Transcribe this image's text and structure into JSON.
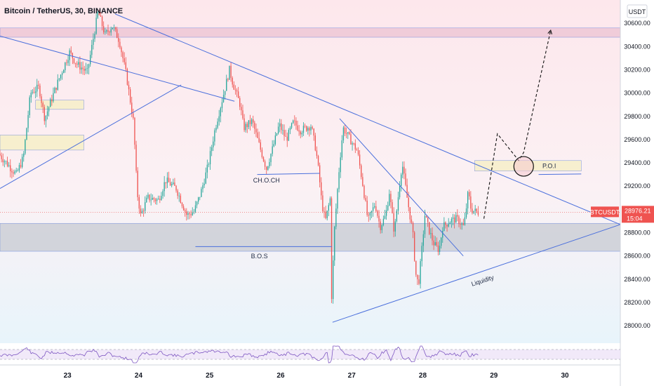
{
  "header": {
    "title": "Bitcoin / TetherUS, 30, BINANCE"
  },
  "colors": {
    "up": "#26a69a",
    "down": "#ef5350",
    "line": "#4a6fdc",
    "price_tag": "#ef5350",
    "zone_gray": "#b0b6bf",
    "zone_pink": "#e6b4c8",
    "zone_yellow": "#f6efc8"
  },
  "chart_data": {
    "type": "candlestick",
    "symbol": "Bitcoin / TetherUS",
    "interval": "30",
    "exchange": "BINANCE",
    "y_unit": "USDT",
    "ylim": [
      27850,
      30800
    ],
    "y_ticks": [
      28000,
      28200,
      28400,
      28600,
      28800,
      29000,
      29200,
      29400,
      29600,
      29800,
      30000,
      30200,
      30400,
      30600
    ],
    "y_tick_labels": [
      "28000.00",
      "28200.00",
      "28400.00",
      "28600.00",
      "28800.00",
      "29000.00",
      "29200.00",
      "29400.00",
      "29600.00",
      "29800.00",
      "30000.00",
      "30200.00",
      "30400.00",
      "30600.00"
    ],
    "x_ticks": [
      23,
      24,
      25,
      26,
      27,
      28,
      29,
      30
    ],
    "x_tick_labels": [
      "23",
      "24",
      "25",
      "26",
      "27",
      "28",
      "29",
      "30"
    ],
    "x_range": [
      22.05,
      30.78
    ],
    "last_price": {
      "label": "BTCUSDT",
      "value": "28976.21",
      "countdown": "15:04",
      "price": 28976
    },
    "anchors": [
      [
        22.05,
        29480
      ],
      [
        22.3,
        29300
      ],
      [
        22.4,
        29450
      ],
      [
        22.5,
        30000
      ],
      [
        22.62,
        30050
      ],
      [
        22.7,
        29780
      ],
      [
        22.78,
        29920
      ],
      [
        22.9,
        30120
      ],
      [
        23.05,
        30350
      ],
      [
        23.15,
        30250
      ],
      [
        23.3,
        30180
      ],
      [
        23.45,
        30700
      ],
      [
        23.55,
        30500
      ],
      [
        23.65,
        30580
      ],
      [
        23.75,
        30450
      ],
      [
        23.85,
        30150
      ],
      [
        23.95,
        29750
      ],
      [
        24.0,
        29150
      ],
      [
        24.05,
        28950
      ],
      [
        24.15,
        29100
      ],
      [
        24.3,
        29080
      ],
      [
        24.4,
        29250
      ],
      [
        24.55,
        29180
      ],
      [
        24.7,
        28950
      ],
      [
        24.8,
        28980
      ],
      [
        24.9,
        29150
      ],
      [
        25.0,
        29380
      ],
      [
        25.1,
        29700
      ],
      [
        25.2,
        29950
      ],
      [
        25.3,
        30200
      ],
      [
        25.35,
        30080
      ],
      [
        25.45,
        29900
      ],
      [
        25.5,
        29700
      ],
      [
        25.62,
        29760
      ],
      [
        25.72,
        29550
      ],
      [
        25.82,
        29350
      ],
      [
        25.92,
        29550
      ],
      [
        26.0,
        29730
      ],
      [
        26.1,
        29600
      ],
      [
        26.2,
        29750
      ],
      [
        26.3,
        29680
      ],
      [
        26.45,
        29720
      ],
      [
        26.52,
        29500
      ],
      [
        26.56,
        29300
      ],
      [
        26.6,
        29050
      ],
      [
        26.65,
        28900
      ],
      [
        26.72,
        29100
      ],
      [
        26.73,
        28150
      ],
      [
        26.78,
        28850
      ],
      [
        26.85,
        29400
      ],
      [
        26.9,
        29700
      ],
      [
        27.0,
        29600
      ],
      [
        27.1,
        29500
      ],
      [
        27.18,
        29200
      ],
      [
        27.25,
        28900
      ],
      [
        27.35,
        29050
      ],
      [
        27.42,
        28850
      ],
      [
        27.5,
        28950
      ],
      [
        27.55,
        29150
      ],
      [
        27.62,
        28800
      ],
      [
        27.7,
        29250
      ],
      [
        27.73,
        29400
      ],
      [
        27.8,
        29100
      ],
      [
        27.88,
        28800
      ],
      [
        27.92,
        28450
      ],
      [
        27.96,
        28350
      ],
      [
        28.0,
        28600
      ],
      [
        28.05,
        28950
      ],
      [
        28.12,
        28800
      ],
      [
        28.18,
        28700
      ],
      [
        28.25,
        28650
      ],
      [
        28.3,
        28850
      ],
      [
        28.4,
        28900
      ],
      [
        28.5,
        28920
      ],
      [
        28.6,
        28850
      ],
      [
        28.66,
        29150
      ],
      [
        28.7,
        29000
      ],
      [
        28.78,
        28976
      ]
    ],
    "zones": [
      {
        "name": "resistance-zone",
        "y0": 30480,
        "y1": 30560,
        "x0": 22.05,
        "x1": 30.78
      },
      {
        "name": "support-zone",
        "y0": 28640,
        "y1": 28880,
        "x0": 22.05,
        "x1": 30.78
      },
      {
        "name": "order-block-1",
        "y0": 29860,
        "y1": 29940,
        "x0": 22.55,
        "x1": 23.23
      },
      {
        "name": "order-block-2",
        "y0": 29510,
        "y1": 29640,
        "x0": 22.05,
        "x1": 23.23
      },
      {
        "name": "poi-zone",
        "y0": 29330,
        "y1": 29420,
        "x0": 28.73,
        "x1": 30.23
      }
    ],
    "trendlines": [
      {
        "name": "upper-trendline",
        "x0": 23.67,
        "y0": 30680,
        "x1": 30.78,
        "y1": 28870
      },
      {
        "name": "left-downtrend",
        "x0": 22.05,
        "y0": 30490,
        "x1": 25.35,
        "y1": 29930
      },
      {
        "name": "left-uptrend",
        "x0": 22.05,
        "y0": 29180,
        "x1": 24.6,
        "y1": 30070
      },
      {
        "name": "bos-line",
        "x0": 24.8,
        "y0": 28680,
        "x1": 26.72,
        "y1": 28680
      },
      {
        "name": "choch-line",
        "x0": 25.67,
        "y0": 29300,
        "x1": 26.55,
        "y1": 29310
      },
      {
        "name": "upper-wedge",
        "x0": 26.83,
        "y0": 29780,
        "x1": 28.57,
        "y1": 28600
      },
      {
        "name": "lower-wedge",
        "x0": 26.73,
        "y0": 28030,
        "x1": 30.78,
        "y1": 28870
      },
      {
        "name": "poi-right-line",
        "x0": 29.63,
        "y0": 29300,
        "x1": 30.23,
        "y1": 29305
      }
    ],
    "projection": [
      [
        28.86,
        28920
      ],
      [
        29.05,
        29650
      ],
      [
        29.35,
        29420
      ],
      [
        29.42,
        29490
      ],
      [
        29.8,
        30540
      ]
    ],
    "annotations": [
      {
        "text": "CH.O.CH",
        "x": 25.8,
        "y": 29230
      },
      {
        "text": "B.O.S",
        "x": 25.7,
        "y": 28580
      },
      {
        "text": "Liquidity",
        "x": 28.85,
        "y": 28370
      },
      {
        "text": "P.O.I",
        "x": 29.78,
        "y": 29355
      }
    ],
    "rsi_band": [
      40,
      60
    ]
  }
}
